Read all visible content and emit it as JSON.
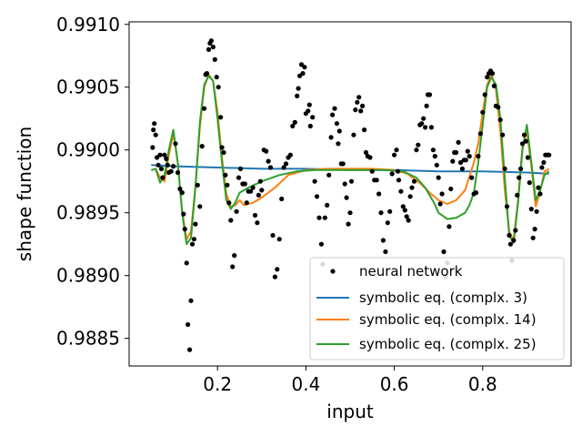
{
  "chart_data": {
    "type": "scatter",
    "xlabel": "input",
    "ylabel": "shape function",
    "xlim": [
      0.0,
      1.0
    ],
    "ylim": [
      0.98828,
      0.99102
    ],
    "x_ticks": [
      {
        "value": 0.2,
        "label": "0.2"
      },
      {
        "value": 0.4,
        "label": "0.4"
      },
      {
        "value": 0.6,
        "label": "0.6"
      },
      {
        "value": 0.8,
        "label": "0.8"
      }
    ],
    "y_ticks": [
      {
        "value": 0.9885,
        "label": "0.9885"
      },
      {
        "value": 0.989,
        "label": "0.9890"
      },
      {
        "value": 0.9895,
        "label": "0.9895"
      },
      {
        "value": 0.99,
        "label": "0.9900"
      },
      {
        "value": 0.9905,
        "label": "0.9905"
      },
      {
        "value": 0.991,
        "label": "0.9910"
      }
    ],
    "legend_position": "bottom-right",
    "scatter_series": {
      "name": "neural network",
      "color": "#000000",
      "points": [
        [
          0.053,
          0.99002
        ],
        [
          0.055,
          0.99016
        ],
        [
          0.057,
          0.99021
        ],
        [
          0.06,
          0.99012
        ],
        [
          0.063,
          0.98994
        ],
        [
          0.066,
          0.98988
        ],
        [
          0.07,
          0.98996
        ],
        [
          0.073,
          0.98985
        ],
        [
          0.076,
          0.98978
        ],
        [
          0.08,
          0.98996
        ],
        [
          0.084,
          0.98993
        ],
        [
          0.087,
          0.98988
        ],
        [
          0.09,
          0.98982
        ],
        [
          0.095,
          0.98983
        ],
        [
          0.1,
          0.98987
        ],
        [
          0.105,
          0.99005
        ],
        [
          0.11,
          0.98982
        ],
        [
          0.115,
          0.98969
        ],
        [
          0.12,
          0.98966
        ],
        [
          0.123,
          0.98949
        ],
        [
          0.126,
          0.98937
        ],
        [
          0.13,
          0.9891
        ],
        [
          0.133,
          0.98861
        ],
        [
          0.137,
          0.98841
        ],
        [
          0.14,
          0.9888
        ],
        [
          0.143,
          0.98925
        ],
        [
          0.147,
          0.98929
        ],
        [
          0.15,
          0.98941
        ],
        [
          0.155,
          0.98972
        ],
        [
          0.16,
          0.98955
        ],
        [
          0.165,
          0.99003
        ],
        [
          0.17,
          0.99033
        ],
        [
          0.173,
          0.9906
        ],
        [
          0.176,
          0.99061
        ],
        [
          0.18,
          0.9908
        ],
        [
          0.183,
          0.99085
        ],
        [
          0.186,
          0.99087
        ],
        [
          0.19,
          0.99082
        ],
        [
          0.194,
          0.99072
        ],
        [
          0.198,
          0.99058
        ],
        [
          0.202,
          0.9905
        ],
        [
          0.207,
          0.99026
        ],
        [
          0.21,
          0.99002
        ],
        [
          0.214,
          0.98998
        ],
        [
          0.218,
          0.9898
        ],
        [
          0.222,
          0.98972
        ],
        [
          0.226,
          0.98958
        ],
        [
          0.23,
          0.98944
        ],
        [
          0.234,
          0.98907
        ],
        [
          0.238,
          0.98916
        ],
        [
          0.243,
          0.98951
        ],
        [
          0.248,
          0.98978
        ],
        [
          0.252,
          0.98985
        ],
        [
          0.257,
          0.98973
        ],
        [
          0.262,
          0.98973
        ],
        [
          0.266,
          0.98958
        ],
        [
          0.27,
          0.98967
        ],
        [
          0.275,
          0.98967
        ],
        [
          0.28,
          0.9897
        ],
        [
          0.285,
          0.98948
        ],
        [
          0.29,
          0.98942
        ],
        [
          0.293,
          0.98964
        ],
        [
          0.297,
          0.98975
        ],
        [
          0.3,
          0.98968
        ],
        [
          0.305,
          0.99
        ],
        [
          0.31,
          0.98999
        ],
        [
          0.315,
          0.98991
        ],
        [
          0.32,
          0.98986
        ],
        [
          0.325,
          0.98932
        ],
        [
          0.33,
          0.98899
        ],
        [
          0.335,
          0.98905
        ],
        [
          0.34,
          0.98929
        ],
        [
          0.345,
          0.98961
        ],
        [
          0.35,
          0.98986
        ],
        [
          0.355,
          0.98989
        ],
        [
          0.36,
          0.98994
        ],
        [
          0.365,
          0.98996
        ],
        [
          0.37,
          0.99019
        ],
        [
          0.375,
          0.99022
        ],
        [
          0.38,
          0.99043
        ],
        [
          0.383,
          0.99049
        ],
        [
          0.386,
          0.99059
        ],
        [
          0.39,
          0.99068
        ],
        [
          0.393,
          0.99061
        ],
        [
          0.397,
          0.99066
        ],
        [
          0.4,
          0.99029
        ],
        [
          0.405,
          0.99031
        ],
        [
          0.408,
          0.99036
        ],
        [
          0.41,
          0.99019
        ],
        [
          0.415,
          0.99026
        ],
        [
          0.42,
          0.98975
        ],
        [
          0.425,
          0.98963
        ],
        [
          0.43,
          0.98946
        ],
        [
          0.435,
          0.98925
        ],
        [
          0.438,
          0.98909
        ],
        [
          0.443,
          0.98946
        ],
        [
          0.448,
          0.98956
        ],
        [
          0.452,
          0.9898
        ],
        [
          0.457,
          0.9901
        ],
        [
          0.46,
          0.99028
        ],
        [
          0.465,
          0.99033
        ],
        [
          0.47,
          0.99021
        ],
        [
          0.473,
          0.99005
        ],
        [
          0.476,
          0.99015
        ],
        [
          0.48,
          0.98989
        ],
        [
          0.484,
          0.98989
        ],
        [
          0.488,
          0.98973
        ],
        [
          0.492,
          0.98962
        ],
        [
          0.496,
          0.98941
        ],
        [
          0.5,
          0.9895
        ],
        [
          0.503,
          0.98975
        ],
        [
          0.508,
          0.99012
        ],
        [
          0.512,
          0.99032
        ],
        [
          0.516,
          0.99038
        ],
        [
          0.52,
          0.99042
        ],
        [
          0.524,
          0.99031
        ],
        [
          0.528,
          0.99035
        ],
        [
          0.532,
          0.99016
        ],
        [
          0.536,
          0.98998
        ],
        [
          0.54,
          0.98995
        ],
        [
          0.545,
          0.98994
        ],
        [
          0.55,
          0.98983
        ],
        [
          0.555,
          0.98976
        ],
        [
          0.56,
          0.98976
        ],
        [
          0.565,
          0.98965
        ],
        [
          0.57,
          0.9895
        ],
        [
          0.575,
          0.98928
        ],
        [
          0.58,
          0.98919
        ],
        [
          0.585,
          0.98942
        ],
        [
          0.59,
          0.98951
        ],
        [
          0.595,
          0.98981
        ],
        [
          0.6,
          0.98996
        ],
        [
          0.605,
          0.99
        ],
        [
          0.608,
          0.98983
        ],
        [
          0.61,
          0.98976
        ],
        [
          0.615,
          0.98967
        ],
        [
          0.62,
          0.98955
        ],
        [
          0.624,
          0.98952
        ],
        [
          0.628,
          0.98947
        ],
        [
          0.632,
          0.98944
        ],
        [
          0.636,
          0.98963
        ],
        [
          0.64,
          0.9897
        ],
        [
          0.645,
          0.98975
        ],
        [
          0.65,
          0.99
        ],
        [
          0.654,
          0.99004
        ],
        [
          0.658,
          0.9902
        ],
        [
          0.662,
          0.99021
        ],
        [
          0.666,
          0.99025
        ],
        [
          0.67,
          0.99018
        ],
        [
          0.673,
          0.99035
        ],
        [
          0.676,
          0.99044
        ],
        [
          0.68,
          0.99044
        ],
        [
          0.684,
          0.99018
        ],
        [
          0.688,
          0.99
        ],
        [
          0.692,
          0.98995
        ],
        [
          0.696,
          0.98988
        ],
        [
          0.7,
          0.98978
        ],
        [
          0.704,
          0.98957
        ],
        [
          0.708,
          0.98965
        ],
        [
          0.712,
          0.98919
        ],
        [
          0.716,
          0.98899
        ],
        [
          0.72,
          0.9891
        ],
        [
          0.724,
          0.98939
        ],
        [
          0.728,
          0.98969
        ],
        [
          0.732,
          0.98991
        ],
        [
          0.736,
          0.98998
        ],
        [
          0.74,
          0.98998
        ],
        [
          0.745,
          0.99006
        ],
        [
          0.75,
          0.9899
        ],
        [
          0.754,
          0.98985
        ],
        [
          0.758,
          0.98992
        ],
        [
          0.762,
          0.98992
        ],
        [
          0.766,
          0.98999
        ],
        [
          0.77,
          0.98995
        ],
        [
          0.775,
          0.98978
        ],
        [
          0.78,
          0.98965
        ],
        [
          0.785,
          0.98966
        ],
        [
          0.79,
          0.98995
        ],
        [
          0.795,
          0.99013
        ],
        [
          0.8,
          0.9903
        ],
        [
          0.805,
          0.99044
        ],
        [
          0.81,
          0.99058
        ],
        [
          0.814,
          0.99061
        ],
        [
          0.818,
          0.99063
        ],
        [
          0.822,
          0.99061
        ],
        [
          0.826,
          0.99051
        ],
        [
          0.83,
          0.99035
        ],
        [
          0.835,
          0.99034
        ],
        [
          0.84,
          0.99024
        ],
        [
          0.845,
          0.99012
        ],
        [
          0.85,
          0.98985
        ],
        [
          0.855,
          0.98955
        ],
        [
          0.86,
          0.98932
        ],
        [
          0.863,
          0.98925
        ],
        [
          0.866,
          0.98912
        ],
        [
          0.87,
          0.98928
        ],
        [
          0.874,
          0.98936
        ],
        [
          0.878,
          0.98964
        ],
        [
          0.882,
          0.98978
        ],
        [
          0.886,
          0.98985
        ],
        [
          0.89,
          0.99005
        ],
        [
          0.894,
          0.99012
        ],
        [
          0.898,
          0.99007
        ],
        [
          0.902,
          0.98994
        ],
        [
          0.906,
          0.98974
        ],
        [
          0.91,
          0.98953
        ],
        [
          0.914,
          0.9893
        ],
        [
          0.918,
          0.98937
        ],
        [
          0.922,
          0.98951
        ],
        [
          0.926,
          0.9897
        ],
        [
          0.93,
          0.98965
        ],
        [
          0.934,
          0.98986
        ],
        [
          0.938,
          0.9899
        ],
        [
          0.942,
          0.98996
        ],
        [
          0.946,
          0.98996
        ],
        [
          0.95,
          0.98996
        ]
      ]
    },
    "series": [
      {
        "name": "symbolic eq. (complx. 3)",
        "color": "#1f77b4",
        "x": [
          0.05,
          0.1,
          0.2,
          0.3,
          0.4,
          0.5,
          0.6,
          0.7,
          0.8,
          0.9,
          0.95
        ],
        "y": [
          0.98988,
          0.98987,
          0.98986,
          0.98985,
          0.98985,
          0.98984,
          0.98984,
          0.98983,
          0.98983,
          0.98982,
          0.98981
        ]
      },
      {
        "name": "symbolic eq. (complx. 14)",
        "color": "#ff7f0e",
        "x": [
          0.05,
          0.06,
          0.07,
          0.08,
          0.09,
          0.1,
          0.11,
          0.12,
          0.13,
          0.14,
          0.15,
          0.16,
          0.17,
          0.18,
          0.19,
          0.2,
          0.21,
          0.22,
          0.23,
          0.24,
          0.25,
          0.26,
          0.28,
          0.3,
          0.33,
          0.36,
          0.4,
          0.45,
          0.5,
          0.55,
          0.6,
          0.63,
          0.66,
          0.68,
          0.7,
          0.72,
          0.74,
          0.76,
          0.78,
          0.79,
          0.8,
          0.81,
          0.82,
          0.83,
          0.84,
          0.85,
          0.86,
          0.87,
          0.88,
          0.89,
          0.9,
          0.91,
          0.92,
          0.93,
          0.94,
          0.95
        ],
        "y": [
          0.98984,
          0.98985,
          0.98978,
          0.98975,
          0.98996,
          0.99013,
          0.9899,
          0.98951,
          0.98929,
          0.98935,
          0.98971,
          0.99018,
          0.9905,
          0.9906,
          0.99055,
          0.9903,
          0.98994,
          0.98965,
          0.98955,
          0.98956,
          0.9896,
          0.98956,
          0.98958,
          0.98962,
          0.9897,
          0.9898,
          0.98984,
          0.98985,
          0.98985,
          0.98985,
          0.98984,
          0.98981,
          0.98973,
          0.98966,
          0.9896,
          0.98957,
          0.9896,
          0.98968,
          0.9899,
          0.99005,
          0.9903,
          0.99052,
          0.9906,
          0.99048,
          0.99015,
          0.98968,
          0.98935,
          0.98928,
          0.9896,
          0.99003,
          0.99015,
          0.98987,
          0.98955,
          0.98967,
          0.98983,
          0.98985
        ]
      },
      {
        "name": "symbolic eq. (complx. 25)",
        "color": "#2ca02c",
        "x": [
          0.05,
          0.06,
          0.07,
          0.08,
          0.09,
          0.1,
          0.11,
          0.12,
          0.13,
          0.14,
          0.15,
          0.16,
          0.17,
          0.18,
          0.19,
          0.2,
          0.21,
          0.22,
          0.23,
          0.24,
          0.25,
          0.27,
          0.3,
          0.34,
          0.38,
          0.42,
          0.5,
          0.58,
          0.62,
          0.65,
          0.67,
          0.69,
          0.7,
          0.72,
          0.74,
          0.76,
          0.77,
          0.78,
          0.79,
          0.8,
          0.81,
          0.82,
          0.83,
          0.84,
          0.85,
          0.86,
          0.87,
          0.88,
          0.89,
          0.9,
          0.91,
          0.92,
          0.93,
          0.94,
          0.95
        ],
        "y": [
          0.98984,
          0.98985,
          0.98974,
          0.9898,
          0.99,
          0.99016,
          0.9899,
          0.9895,
          0.98925,
          0.9893,
          0.9897,
          0.99022,
          0.99052,
          0.99059,
          0.99055,
          0.99025,
          0.9899,
          0.9896,
          0.98953,
          0.98958,
          0.98966,
          0.9897,
          0.98975,
          0.9898,
          0.98983,
          0.98984,
          0.98984,
          0.98984,
          0.98983,
          0.98978,
          0.9897,
          0.98958,
          0.9895,
          0.98945,
          0.98946,
          0.9895,
          0.98956,
          0.98966,
          0.9899,
          0.9902,
          0.9905,
          0.99058,
          0.99052,
          0.99025,
          0.98978,
          0.98932,
          0.98926,
          0.98958,
          0.99,
          0.9902,
          0.9899,
          0.9896,
          0.98968,
          0.9898,
          0.98983
        ]
      }
    ]
  }
}
